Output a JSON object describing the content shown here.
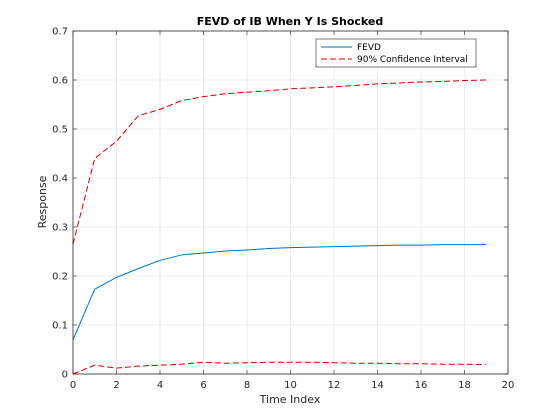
{
  "chart_data": {
    "type": "line",
    "title": "FEVD of IB When Y Is Shocked",
    "xlabel": "Time Index",
    "ylabel": "Response",
    "xlim": [
      0,
      20
    ],
    "ylim": [
      0,
      0.7
    ],
    "xticks": [
      "0",
      "2",
      "4",
      "6",
      "8",
      "10",
      "12",
      "14",
      "16",
      "18",
      "20"
    ],
    "yticks": [
      "0",
      "0.1",
      "0.2",
      "0.3",
      "0.4",
      "0.5",
      "0.6",
      "0.7"
    ],
    "grid": true,
    "legend_position": "top-right",
    "x": [
      0,
      1,
      2,
      3,
      4,
      5,
      6,
      7,
      8,
      9,
      10,
      11,
      12,
      13,
      14,
      15,
      16,
      17,
      18,
      19
    ],
    "series": [
      {
        "name": "FEVD",
        "color": "#0072BD",
        "style": "solid",
        "values": [
          0.07,
          0.173,
          0.197,
          0.215,
          0.232,
          0.243,
          0.247,
          0.251,
          0.253,
          0.256,
          0.258,
          0.259,
          0.26,
          0.261,
          0.262,
          0.263,
          0.263,
          0.264,
          0.264,
          0.264
        ]
      },
      {
        "name": "90% Confidence Interval",
        "color": "#D00000",
        "style": "dashed",
        "values": [
          0.265,
          0.44,
          0.475,
          0.527,
          0.54,
          0.558,
          0.566,
          0.572,
          0.575,
          0.578,
          0.582,
          0.584,
          0.586,
          0.589,
          0.592,
          0.594,
          0.596,
          0.597,
          0.599,
          0.6
        ]
      },
      {
        "name": "",
        "color": "#D00000",
        "style": "dashed",
        "values": [
          0.0,
          0.018,
          0.012,
          0.016,
          0.018,
          0.02,
          0.024,
          0.022,
          0.023,
          0.024,
          0.024,
          0.024,
          0.023,
          0.022,
          0.022,
          0.021,
          0.021,
          0.02,
          0.02,
          0.019
        ]
      }
    ]
  }
}
